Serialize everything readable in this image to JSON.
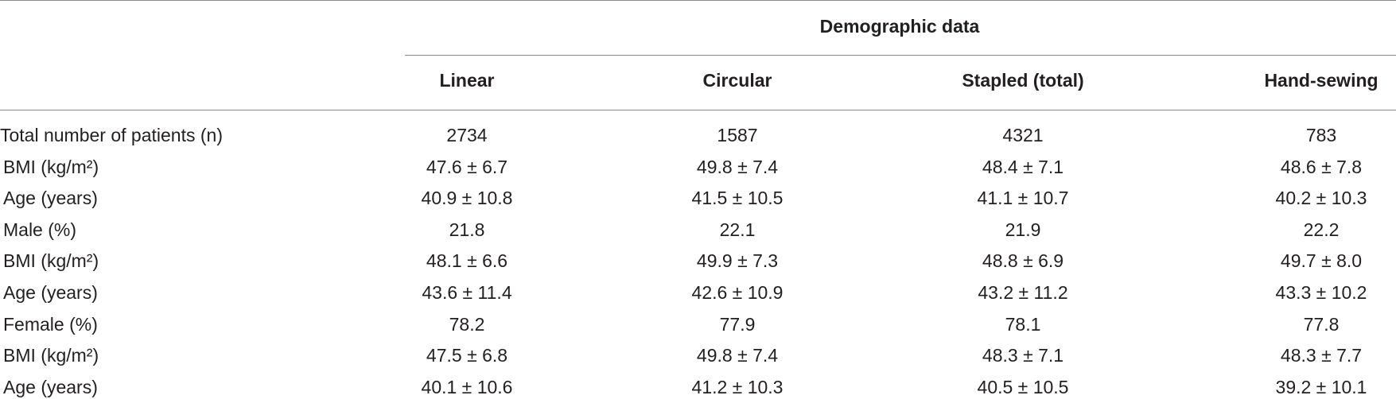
{
  "table": {
    "group_header": "Demographic data",
    "columns": [
      "Linear",
      "Circular",
      "Stapled (total)",
      "Hand-sewing"
    ],
    "rows": [
      [
        "Total number of patients (n)",
        2734,
        1587,
        4321,
        783
      ],
      [
        "BMI (kg/m²)",
        "47.6 ± 6.7",
        "49.8 ± 7.4",
        "48.4 ± 7.1",
        "48.6 ± 7.8"
      ],
      [
        "Age (years)",
        "40.9 ± 10.8",
        "41.5 ± 10.5",
        "41.1 ± 10.7",
        "40.2 ± 10.3"
      ],
      [
        "Male (%)",
        21.8,
        22.1,
        21.9,
        22.2
      ],
      [
        "BMI (kg/m²)",
        "48.1 ± 6.6",
        "49.9 ± 7.3",
        "48.8 ± 6.9",
        "49.7 ± 8.0"
      ],
      [
        "Age (years)",
        "43.6 ± 11.4",
        "42.6 ± 10.9",
        "43.2 ± 11.2",
        "43.3 ± 10.2"
      ],
      [
        "Female (%)",
        78.2,
        77.9,
        78.1,
        77.8
      ],
      [
        "BMI (kg/m²)",
        "47.5 ± 6.8",
        "49.8 ± 7.4",
        "48.3 ± 7.1",
        "48.3 ± 7.7"
      ],
      [
        "Age (years)",
        "40.1 ± 10.6",
        "41.2 ± 10.3",
        "40.5 ± 10.5",
        "39.2 ± 10.1"
      ]
    ]
  }
}
